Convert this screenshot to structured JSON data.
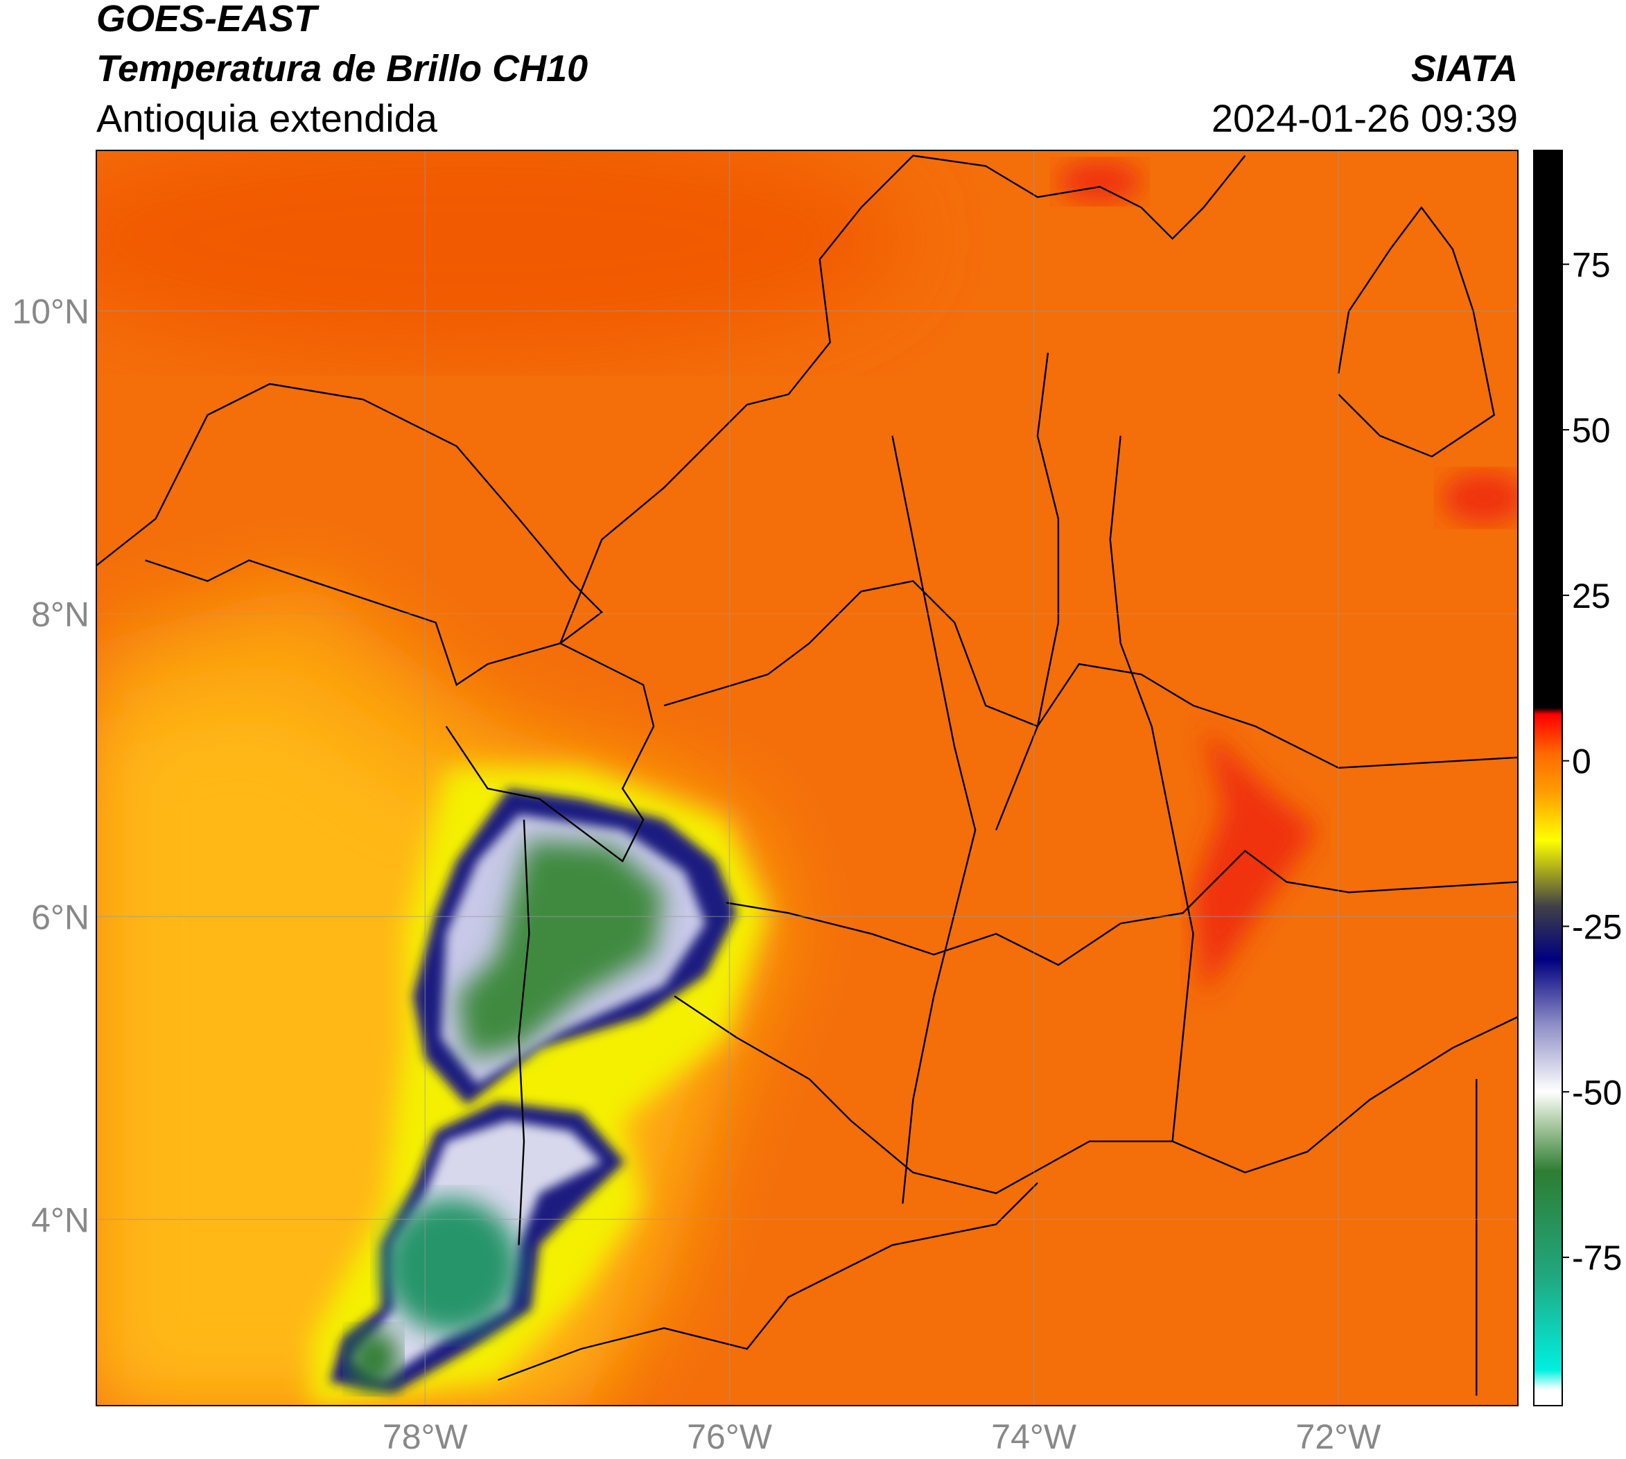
{
  "header": {
    "title": "GOES-EAST",
    "subtitle": "Temperatura de Brillo CH10",
    "region": "Antioquia extendida",
    "source": "SIATA",
    "datetime": "2024-01-26 09:39"
  },
  "map": {
    "xlim": [
      -80.16,
      -70.82
    ],
    "ylim": [
      2.77,
      11.06
    ],
    "grid": true,
    "xticks": [
      {
        "value": -78,
        "label": "78°W"
      },
      {
        "value": -76,
        "label": "76°W"
      },
      {
        "value": -74,
        "label": "74°W"
      },
      {
        "value": -72,
        "label": "72°W"
      }
    ],
    "yticks": [
      {
        "value": 4,
        "label": "4°N"
      },
      {
        "value": 6,
        "label": "6°N"
      },
      {
        "value": 8,
        "label": "8°N"
      },
      {
        "value": 10,
        "label": "10°N"
      }
    ]
  },
  "colorbar": {
    "lim": [
      -97.4,
      92.2
    ],
    "ticks": [
      -75,
      -50,
      -25,
      0,
      25,
      50,
      75
    ],
    "colors": [
      {
        "value": -95,
        "color": "#ffffff"
      },
      {
        "value": -92,
        "color": "#00f0e0"
      },
      {
        "value": -78,
        "color": "#20a880"
      },
      {
        "value": -62,
        "color": "#2e7d32"
      },
      {
        "value": -55,
        "color": "#a8c8a0"
      },
      {
        "value": -50,
        "color": "#ffffff"
      },
      {
        "value": -40,
        "color": "#9090c8"
      },
      {
        "value": -30,
        "color": "#000080"
      },
      {
        "value": -22,
        "color": "#404048"
      },
      {
        "value": -17,
        "color": "#a0a020"
      },
      {
        "value": -12,
        "color": "#ffff00"
      },
      {
        "value": -5,
        "color": "#ffa000"
      },
      {
        "value": 1,
        "color": "#ff6a00"
      },
      {
        "value": 7,
        "color": "#ff0000"
      },
      {
        "value": 8,
        "color": "#000000"
      }
    ]
  }
}
